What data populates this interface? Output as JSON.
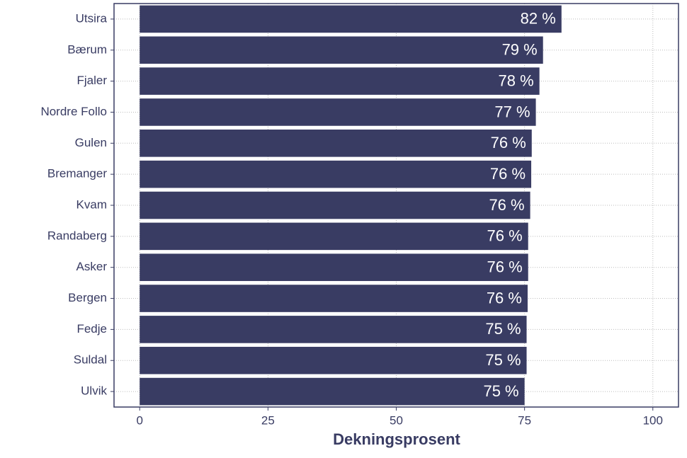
{
  "chart_data": {
    "type": "barh",
    "x_label": "Dekningsprosent",
    "categories": [
      "Utsira",
      "Bærum",
      "Fjaler",
      "Nordre Follo",
      "Gulen",
      "Bremanger",
      "Kvam",
      "Randaberg",
      "Asker",
      "Bergen",
      "Fedje",
      "Suldal",
      "Ulvik"
    ],
    "values": [
      82.2,
      78.6,
      77.9,
      77.2,
      76.4,
      76.3,
      76.1,
      75.7,
      75.7,
      75.6,
      75.4,
      75.4,
      75.0
    ],
    "value_labels": [
      "82 %",
      "79 %",
      "78 %",
      "77 %",
      "76 %",
      "76 %",
      "76 %",
      "76 %",
      "76 %",
      "76 %",
      "75 %",
      "75 %",
      "75 %"
    ],
    "color": "#393c63",
    "xlim": [
      -5,
      105
    ],
    "xticks": [
      0,
      25,
      50,
      75,
      100
    ],
    "grid": true
  }
}
